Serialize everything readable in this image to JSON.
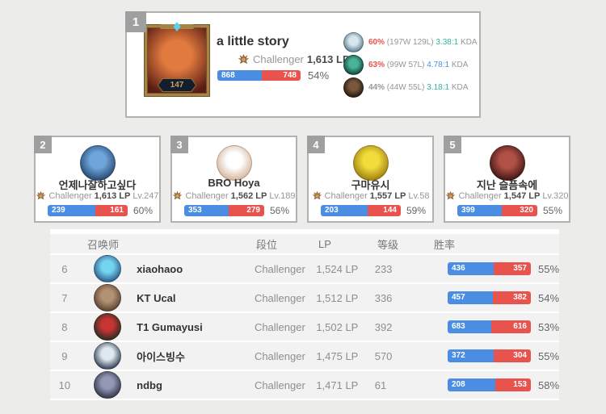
{
  "colors": {
    "page_bg": "#ececeb",
    "card_border": "#b3b2b1",
    "badge_bg": "#9f9f9f",
    "win_blue": "#4a8de2",
    "loss_red": "#e8534e",
    "muted": "#979797",
    "dark": "#333333"
  },
  "top_player": {
    "rank": "1",
    "name": "a little story",
    "tier": "Challenger",
    "lp": "1,613 LP",
    "level": "147",
    "wins": "868",
    "losses": "748",
    "winrate": "54%",
    "avatar_colors": [
      "#e07a3e",
      "#5a1c14"
    ],
    "champions": [
      {
        "icon": "champion-icon-1",
        "winrate": "60%",
        "winrate_color": "#e8534e",
        "record": "(197W 129L)",
        "kda": "3.38:1",
        "kda_color": "#31b3a2",
        "kda_label": "KDA",
        "avatar_colors": [
          "#d8e6ee",
          "#4e7085"
        ]
      },
      {
        "icon": "champion-icon-2",
        "winrate": "63%",
        "winrate_color": "#e8534e",
        "record": "(99W 57L)",
        "kda": "4.78:1",
        "kda_color": "#4a90e2",
        "kda_label": "KDA",
        "avatar_colors": [
          "#49b39a",
          "#0b352c"
        ]
      },
      {
        "icon": "champion-icon-3",
        "winrate": "44%",
        "winrate_color": "#999999",
        "record": "(44W 55L)",
        "kda": "3.18:1",
        "kda_color": "#31b3a2",
        "kda_label": "KDA",
        "avatar_colors": [
          "#7a573c",
          "#17100b"
        ]
      }
    ]
  },
  "cards": [
    {
      "rank": "2",
      "name": "언제나잘하고싶다",
      "tier": "Challenger",
      "lp": "1,613 LP",
      "level": "Lv.247",
      "wins": "239",
      "losses": "161",
      "winrate": "60%",
      "avatar_colors": [
        "#6ea6dc",
        "#1d3a60"
      ]
    },
    {
      "rank": "3",
      "name": "BRO Hoya",
      "tier": "Challenger",
      "lp": "1,562 LP",
      "level": "Lv.189",
      "wins": "353",
      "losses": "279",
      "winrate": "56%",
      "avatar_colors": [
        "#ffffff",
        "#cfa88a"
      ]
    },
    {
      "rank": "4",
      "name": "구마유시",
      "tier": "Challenger",
      "lp": "1,557 LP",
      "level": "Lv.58",
      "wins": "203",
      "losses": "144",
      "winrate": "59%",
      "avatar_colors": [
        "#f2dc3c",
        "#93700a"
      ]
    },
    {
      "rank": "5",
      "name": "지난 슬픔속에",
      "tier": "Challenger",
      "lp": "1,547 LP",
      "level": "Lv.320",
      "wins": "399",
      "losses": "320",
      "winrate": "55%",
      "avatar_colors": [
        "#b05046",
        "#2e0d0d"
      ]
    }
  ],
  "table": {
    "headers": {
      "summoner": "召唤师",
      "tier": "段位",
      "lp": "LP",
      "level": "等级",
      "winrate": "胜率"
    },
    "rows": [
      {
        "rank": "6",
        "name": "xiaohaoo",
        "tier": "Challenger",
        "lp": "1,524 LP",
        "level": "233",
        "wins": "436",
        "losses": "357",
        "winrate": "55%",
        "avatar_colors": [
          "#72d4ee",
          "#23487a"
        ]
      },
      {
        "rank": "7",
        "name": "KT Ucal",
        "tier": "Challenger",
        "lp": "1,512 LP",
        "level": "336",
        "wins": "457",
        "losses": "382",
        "winrate": "54%",
        "avatar_colors": [
          "#b29274",
          "#4e3627"
        ]
      },
      {
        "rank": "8",
        "name": "T1 Gumayusi",
        "tier": "Challenger",
        "lp": "1,502 LP",
        "level": "392",
        "wins": "683",
        "losses": "616",
        "winrate": "53%",
        "avatar_colors": [
          "#c63434",
          "#0f2d1b"
        ]
      },
      {
        "rank": "9",
        "name": "아이스빙수",
        "tier": "Challenger",
        "lp": "1,475 LP",
        "level": "570",
        "wins": "372",
        "losses": "304",
        "winrate": "55%",
        "avatar_colors": [
          "#dfe8ef",
          "#16243f"
        ]
      },
      {
        "rank": "10",
        "name": "ndbg",
        "tier": "Challenger",
        "lp": "1,471 LP",
        "level": "61",
        "wins": "208",
        "losses": "153",
        "winrate": "58%",
        "avatar_colors": [
          "#9298b4",
          "#262636"
        ]
      }
    ]
  }
}
